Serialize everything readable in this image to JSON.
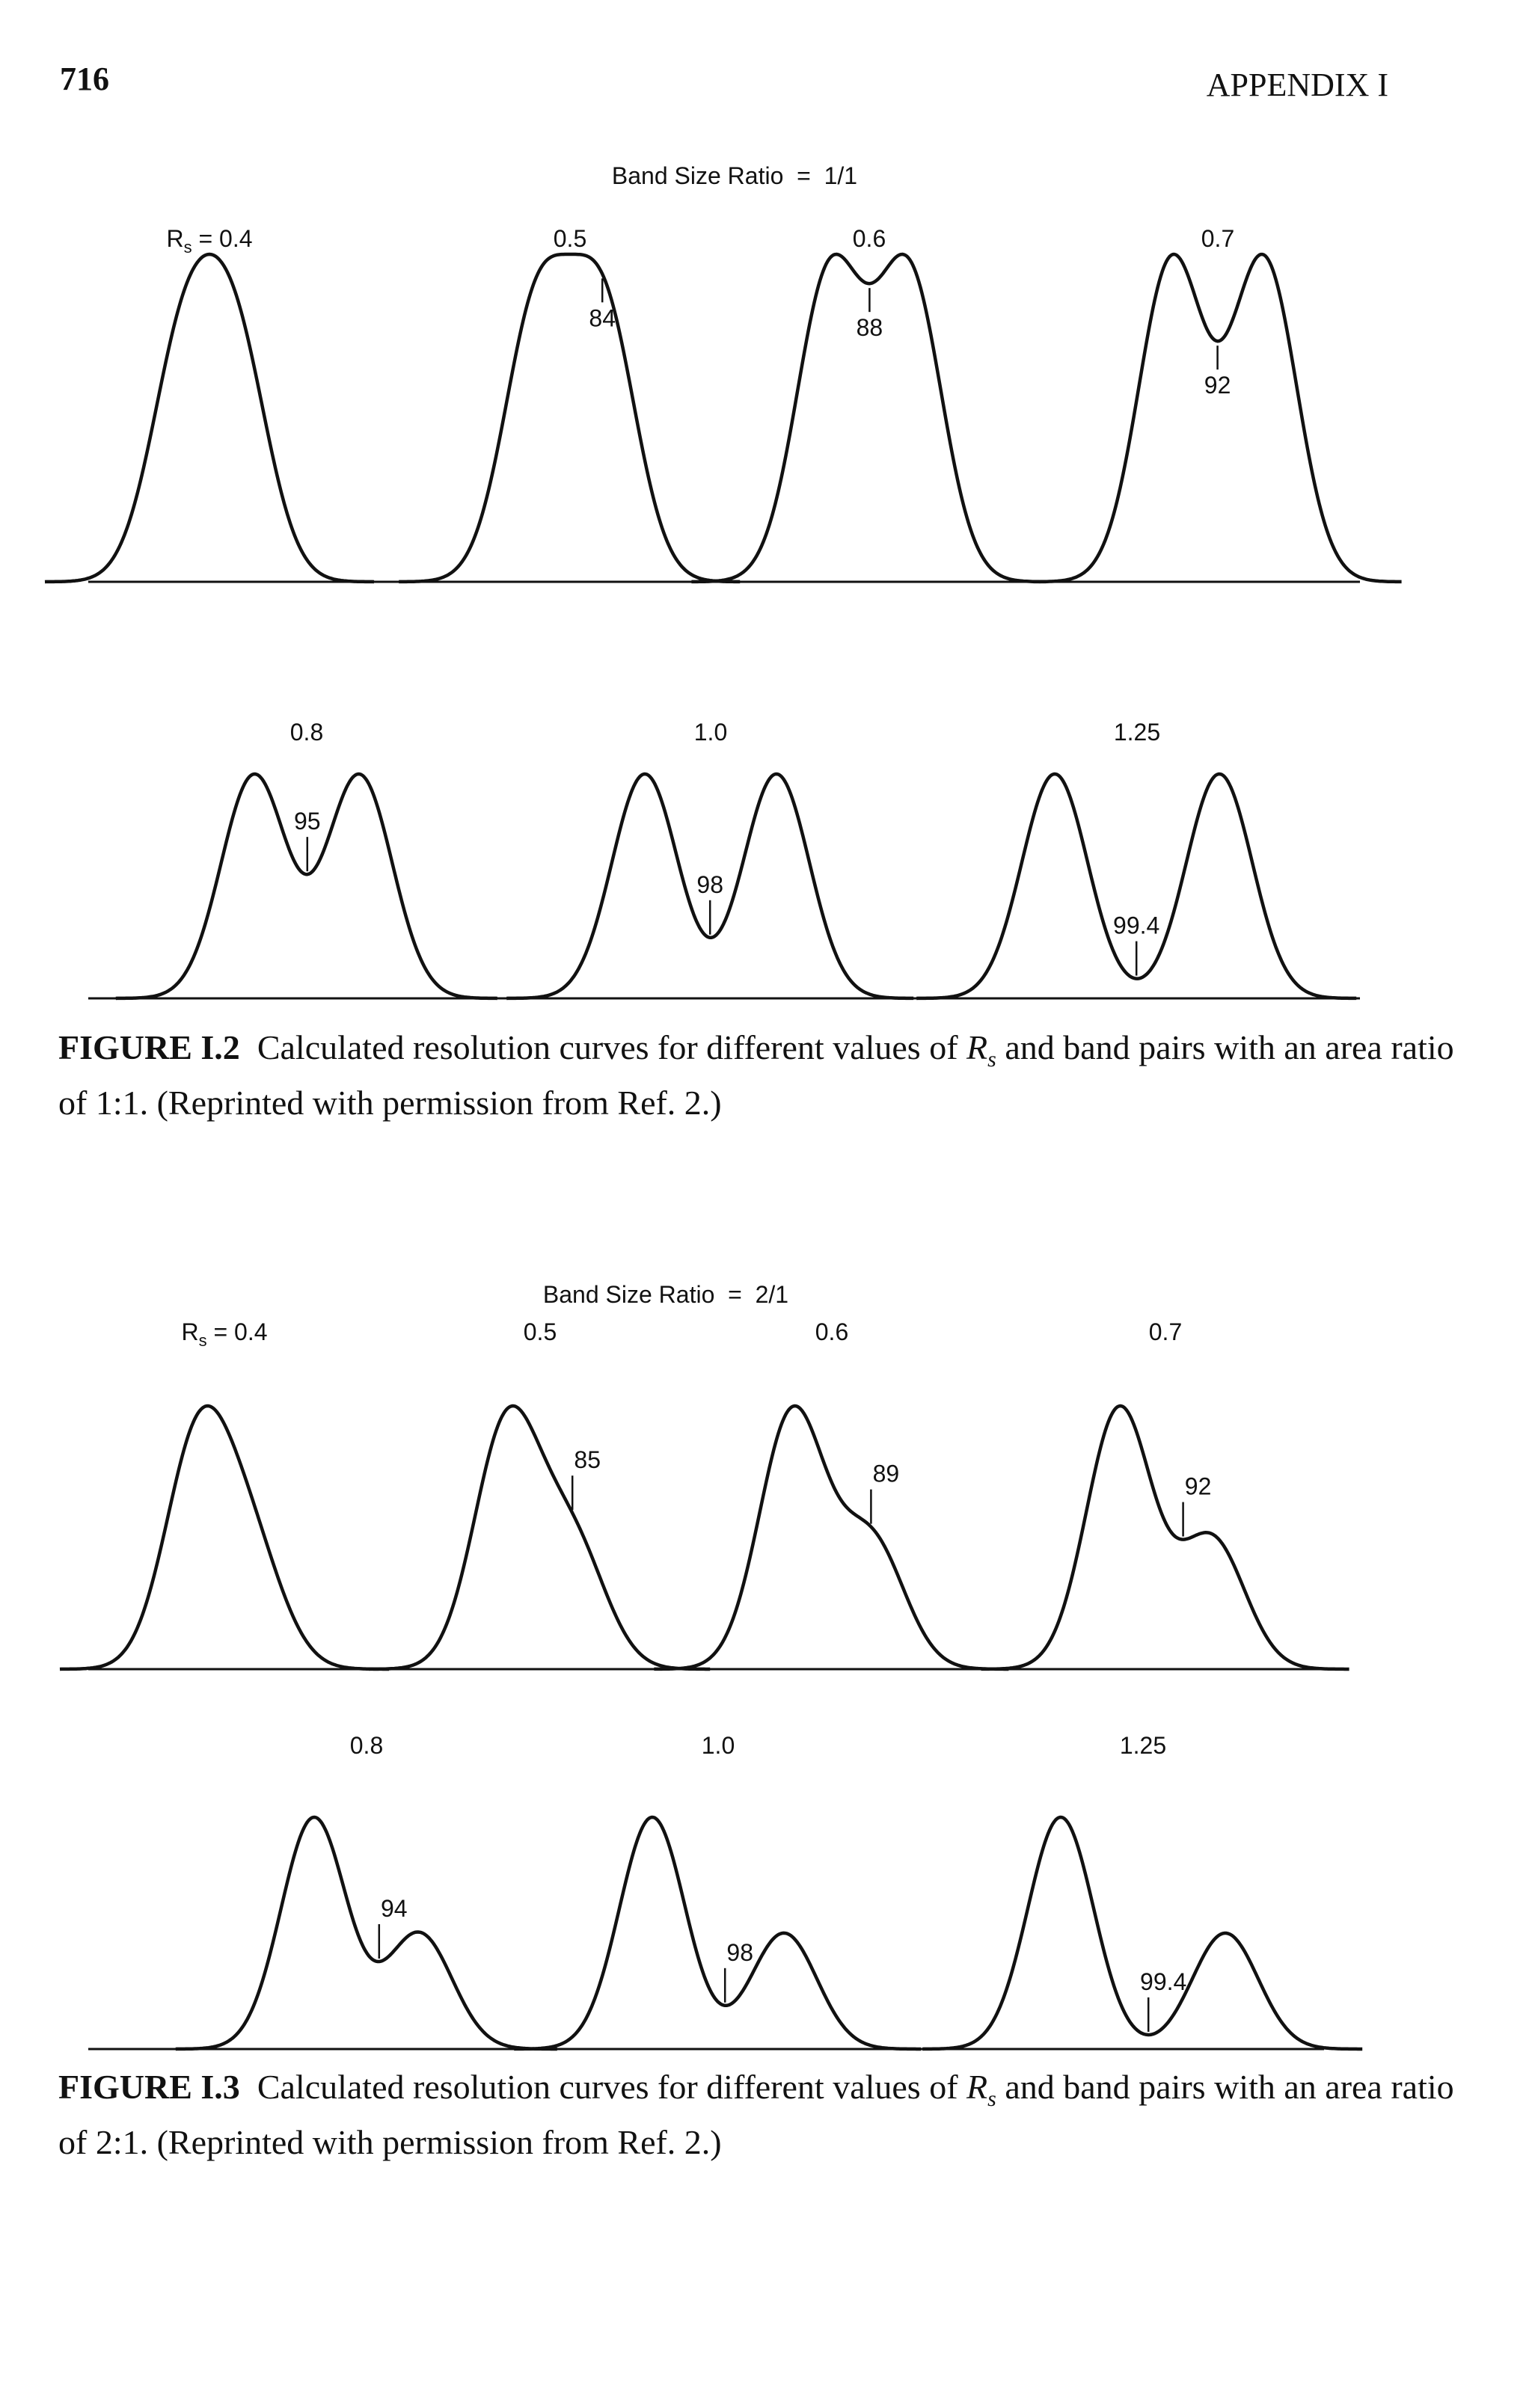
{
  "header": {
    "page_number": "716",
    "section": "APPENDIX I"
  },
  "figures": [
    {
      "title": "Band Size Ratio  =  1/1",
      "rs_prefix": "R",
      "rs_sub": "s",
      "rs_eq": " = ",
      "area_ratio": 1,
      "rows": [
        [
          {
            "rs": "0.4",
            "rs_value": 0.4,
            "label": ""
          },
          {
            "rs": "0.5",
            "rs_value": 0.5,
            "label": "84"
          },
          {
            "rs": "0.6",
            "rs_value": 0.6,
            "label": "88"
          },
          {
            "rs": "0.7",
            "rs_value": 0.7,
            "label": "92"
          }
        ],
        [
          {
            "rs": "0.8",
            "rs_value": 0.8,
            "label": "95"
          },
          {
            "rs": "1.0",
            "rs_value": 1.0,
            "label": "98"
          },
          {
            "rs": "1.25",
            "rs_value": 1.25,
            "label": "99.4"
          }
        ]
      ],
      "caption": {
        "figure_label": "FIGURE I.2",
        "text_before": "Calculated resolution curves for different values of ",
        "var": "R",
        "var_sub": "s",
        "text_after": " and band pairs with an area ratio of 1:1. (Reprinted with permission from Ref. 2.)"
      }
    },
    {
      "title": "Band Size Ratio  =  2/1",
      "rs_prefix": "R",
      "rs_sub": "s",
      "rs_eq": " = ",
      "area_ratio": 2,
      "rows": [
        [
          {
            "rs": "0.4",
            "rs_value": 0.4,
            "label": ""
          },
          {
            "rs": "0.5",
            "rs_value": 0.5,
            "label": "85"
          },
          {
            "rs": "0.6",
            "rs_value": 0.6,
            "label": "89"
          },
          {
            "rs": "0.7",
            "rs_value": 0.7,
            "label": "92"
          }
        ],
        [
          {
            "rs": "0.8",
            "rs_value": 0.8,
            "label": "94"
          },
          {
            "rs": "1.0",
            "rs_value": 1.0,
            "label": "98"
          },
          {
            "rs": "1.25",
            "rs_value": 1.25,
            "label": "99.4"
          }
        ]
      ],
      "caption": {
        "figure_label": "FIGURE I.3",
        "text_before": "Calculated resolution curves for different values of ",
        "var": "R",
        "var_sub": "s",
        "text_after": " and band pairs with an area ratio of 2:1. (Reprinted with permission from Ref. 2.)"
      }
    }
  ]
}
